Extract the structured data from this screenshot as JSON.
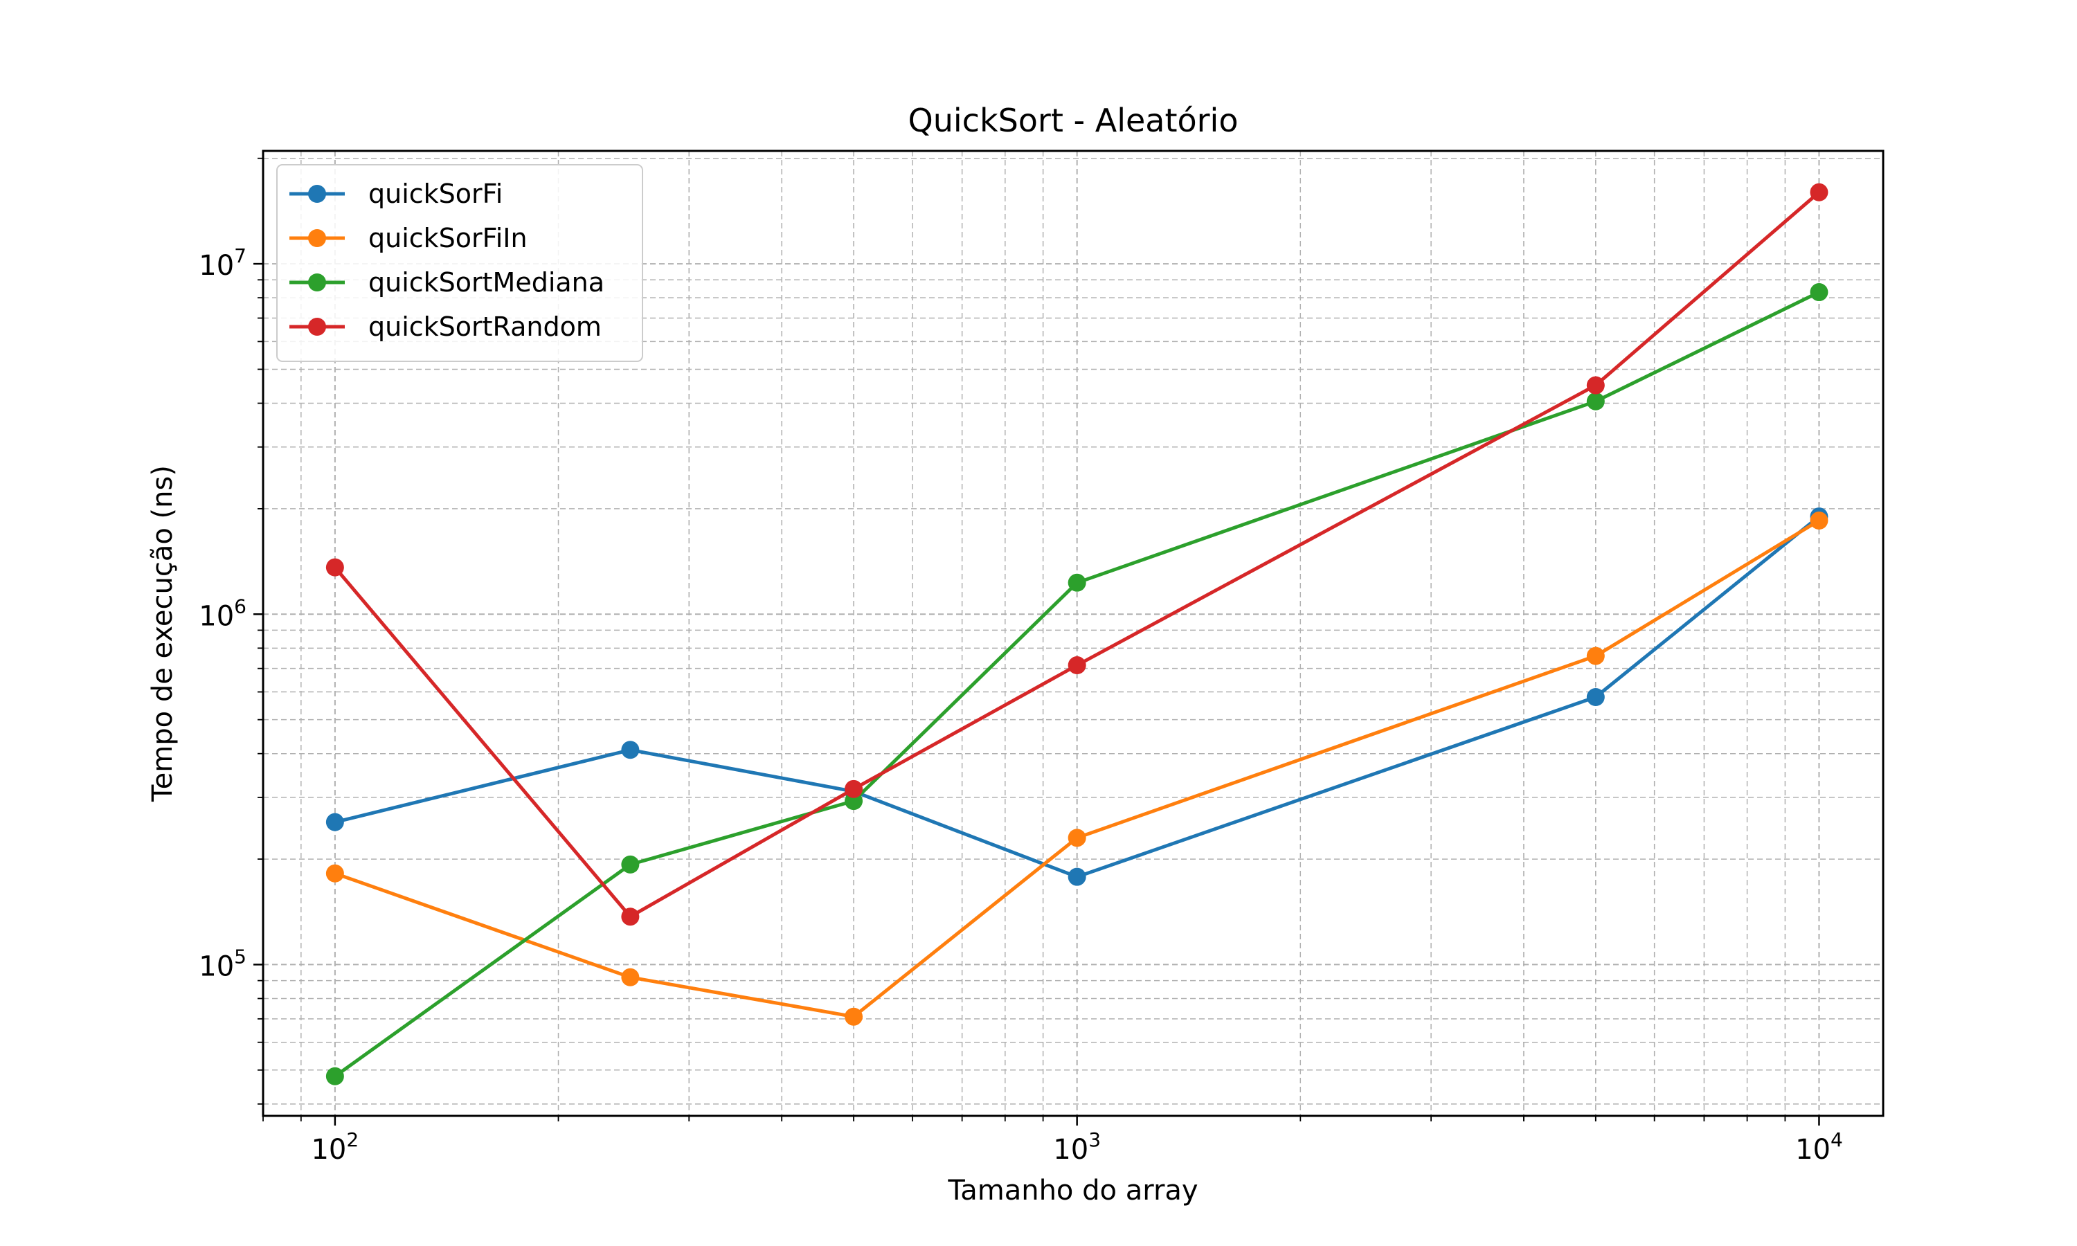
{
  "chart_data": {
    "type": "line",
    "title": "QuickSort - Aleatório",
    "xlabel": "Tamanho do array",
    "ylabel": "Tempo de execução (ns)",
    "xscale": "log",
    "yscale": "log",
    "xlim": [
      80,
      12200
    ],
    "ylim": [
      37000,
      21000000
    ],
    "xticks": [
      {
        "value": 100,
        "base": "10",
        "exp": "2"
      },
      {
        "value": 1000,
        "base": "10",
        "exp": "3"
      },
      {
        "value": 10000,
        "base": "10",
        "exp": "4"
      }
    ],
    "yticks": [
      {
        "value": 100000,
        "base": "10",
        "exp": "5"
      },
      {
        "value": 1000000,
        "base": "10",
        "exp": "6"
      },
      {
        "value": 10000000,
        "base": "10",
        "exp": "7"
      }
    ],
    "grid": true,
    "legend_position": "top-left",
    "x": [
      100,
      250,
      500,
      1000,
      5000,
      10000
    ],
    "series": [
      {
        "name": "quickSorFi",
        "color": "#1f77b4",
        "values": [
          255000,
          410000,
          312000,
          178000,
          580000,
          1900000
        ]
      },
      {
        "name": "quickSorFiIn",
        "color": "#ff7f0e",
        "values": [
          182000,
          92000,
          71000,
          230000,
          760000,
          1850000
        ]
      },
      {
        "name": "quickSortMediana",
        "color": "#2ca02c",
        "values": [
          48000,
          193000,
          293000,
          1230000,
          4050000,
          8300000
        ]
      },
      {
        "name": "quickSortRandom",
        "color": "#d62728",
        "values": [
          1360000,
          137000,
          317000,
          715000,
          4500000,
          16000000
        ]
      }
    ]
  }
}
